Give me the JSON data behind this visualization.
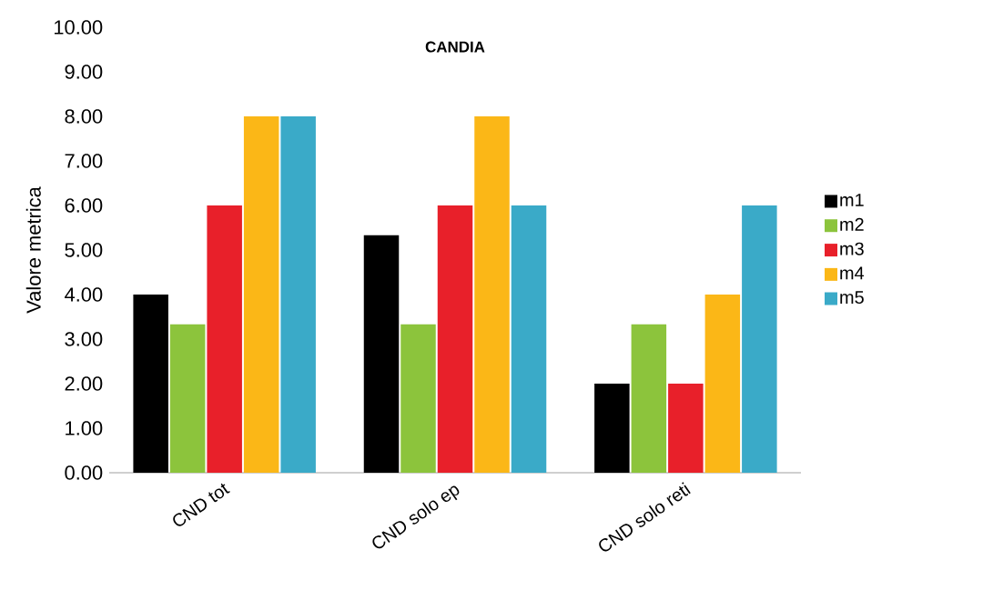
{
  "chart_data": {
    "type": "bar",
    "title": "CANDIA",
    "ylabel": "Valore metrica",
    "categories": [
      "CND tot",
      "CND solo ep",
      "CND solo reti"
    ],
    "series": [
      {
        "name": "m1",
        "color": "#000000",
        "values": [
          4.0,
          5.33,
          2.0
        ]
      },
      {
        "name": "m2",
        "color": "#8cc43c",
        "values": [
          3.33,
          3.33,
          3.33
        ]
      },
      {
        "name": "m3",
        "color": "#e8202a",
        "values": [
          6.0,
          6.0,
          2.0
        ]
      },
      {
        "name": "m4",
        "color": "#fbb717",
        "values": [
          8.0,
          8.0,
          4.0
        ]
      },
      {
        "name": "m5",
        "color": "#3aaac8",
        "values": [
          8.0,
          6.0,
          6.0
        ]
      }
    ],
    "ylim": [
      0,
      10
    ],
    "yticks": [
      {
        "value": 0,
        "label": "0.00"
      },
      {
        "value": 1,
        "label": "1.00"
      },
      {
        "value": 2,
        "label": "2.00"
      },
      {
        "value": 3,
        "label": "3.00"
      },
      {
        "value": 4,
        "label": "4.00"
      },
      {
        "value": 5,
        "label": "5.00"
      },
      {
        "value": 6,
        "label": "6.00"
      },
      {
        "value": 7,
        "label": "7.00"
      },
      {
        "value": 8,
        "label": "8.00"
      },
      {
        "value": 9,
        "label": "9.00"
      },
      {
        "value": 10,
        "label": "10.00"
      }
    ],
    "grid": false,
    "legend": "right"
  }
}
